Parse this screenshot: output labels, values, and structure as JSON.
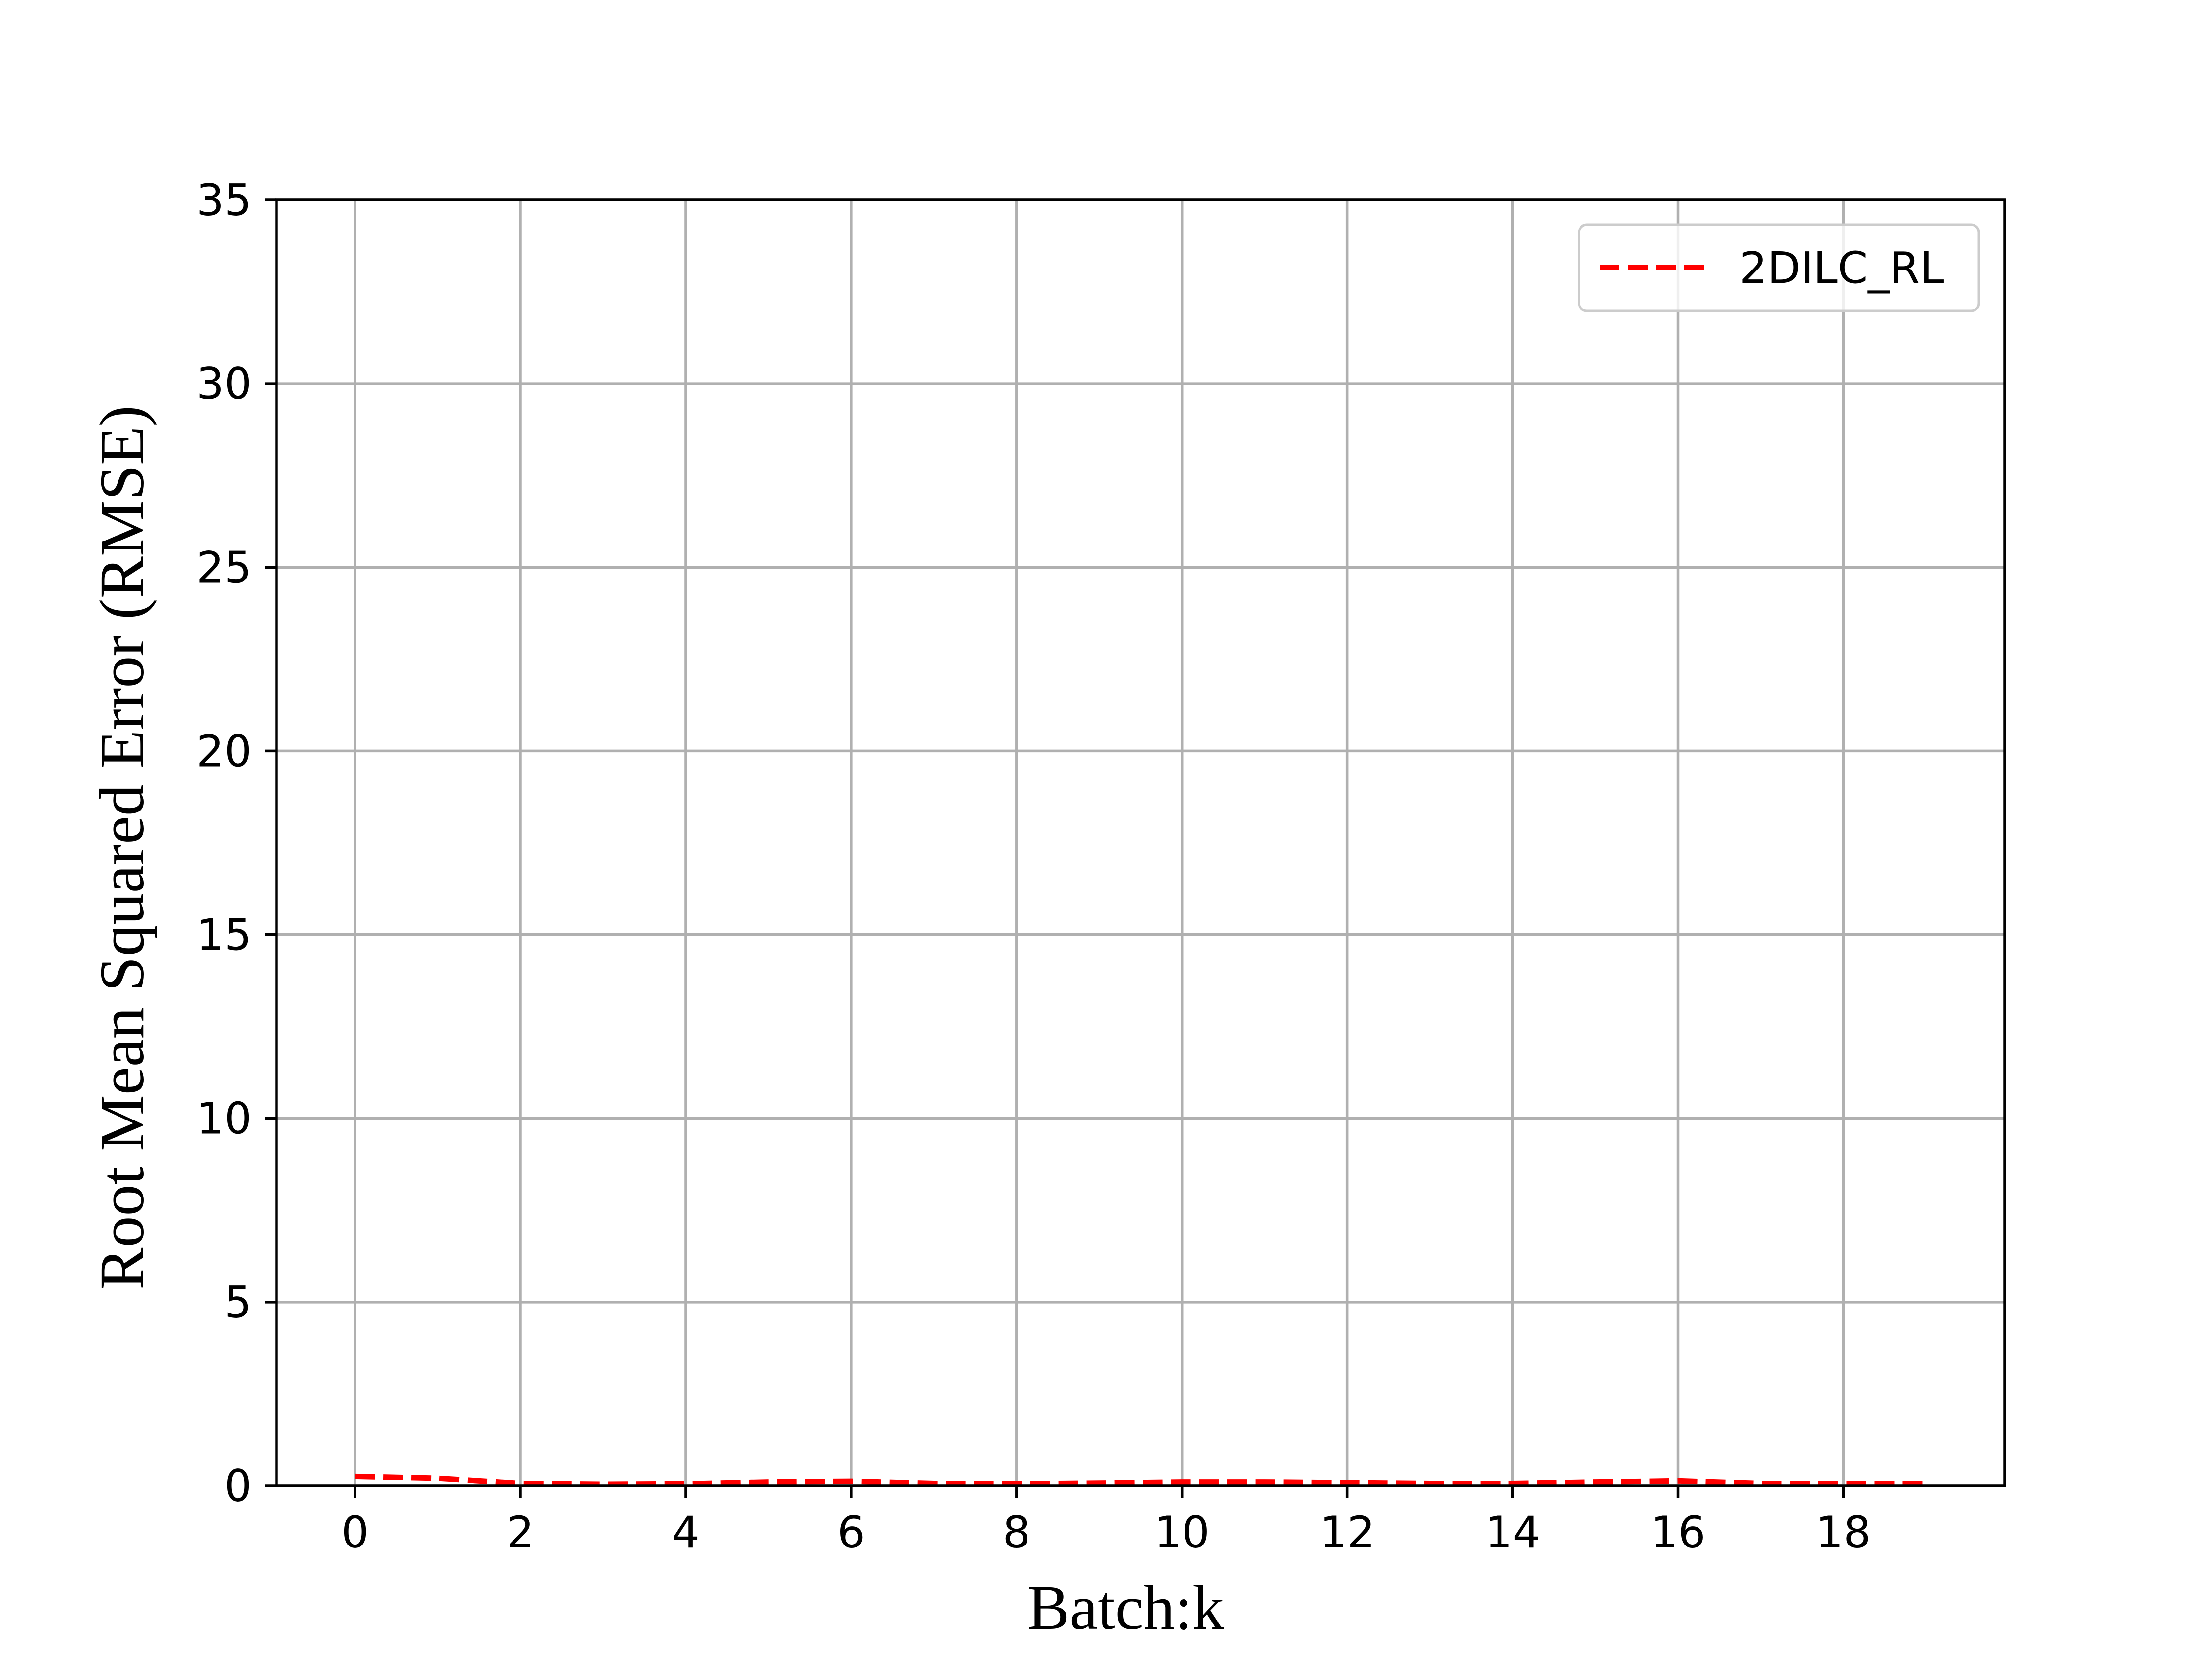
{
  "chart_data": {
    "type": "line",
    "xlabel": "Batch:k",
    "ylabel": "Root Mean Squared Error (RMSE)",
    "xlim": [
      -0.95,
      19.95
    ],
    "ylim": [
      0,
      35
    ],
    "xticks": [
      0,
      2,
      4,
      6,
      8,
      10,
      12,
      14,
      16,
      18
    ],
    "yticks": [
      0,
      5,
      10,
      15,
      20,
      25,
      30,
      35
    ],
    "grid": true,
    "legend_position": "top-right",
    "x": [
      0,
      1,
      2,
      3,
      4,
      5,
      6,
      7,
      8,
      9,
      10,
      11,
      12,
      13,
      14,
      15,
      16,
      17,
      18,
      19
    ],
    "series": [
      {
        "name": "2DILC_RL",
        "color": "#ff0000",
        "line_style": "dashed",
        "values": [
          0.25,
          0.2,
          0.06,
          0.04,
          0.05,
          0.1,
          0.12,
          0.06,
          0.05,
          0.07,
          0.1,
          0.1,
          0.08,
          0.06,
          0.06,
          0.1,
          0.13,
          0.06,
          0.05,
          0.05
        ]
      }
    ]
  }
}
